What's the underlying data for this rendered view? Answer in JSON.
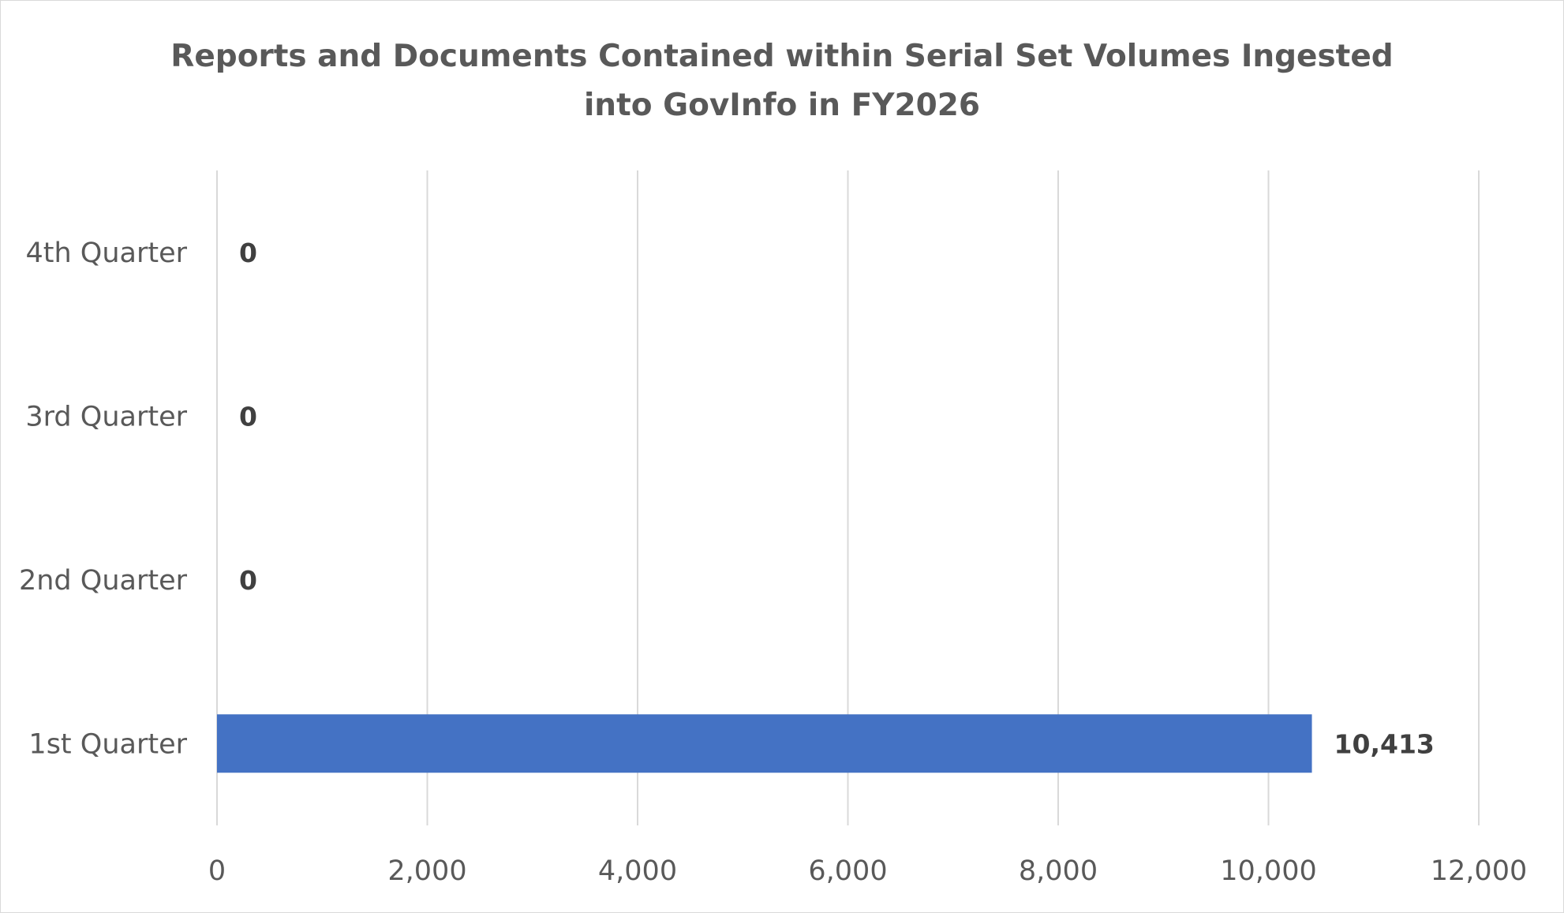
{
  "chart_data": {
    "type": "bar",
    "orientation": "horizontal",
    "title": "Reports and Documents Contained within Serial Set Volumes Ingested into GovInfo in FY2026",
    "categories": [
      "1st Quarter",
      "2nd Quarter",
      "3rd Quarter",
      "4th Quarter"
    ],
    "values": [
      10413,
      0,
      0,
      0
    ],
    "data_labels": [
      "10,413",
      "0",
      "0",
      "0"
    ],
    "xlim": [
      0,
      12000
    ],
    "x_ticks": [
      0,
      2000,
      4000,
      6000,
      8000,
      10000,
      12000
    ],
    "x_tick_labels": [
      "0",
      "2,000",
      "4,000",
      "6,000",
      "8,000",
      "10,000",
      "12,000"
    ],
    "xlabel": "",
    "ylabel": "",
    "grid": "vertical",
    "legend": "none",
    "bar_color": "#4472c4",
    "gridline_color": "#d9d9d9"
  }
}
